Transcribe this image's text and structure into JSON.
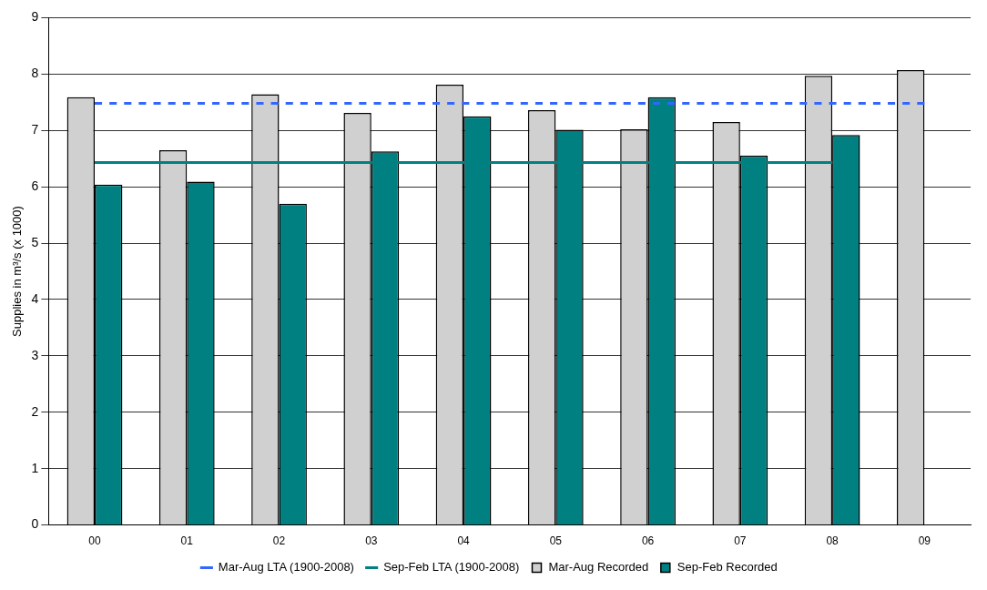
{
  "chart_data": {
    "type": "bar",
    "ylabel": "Supplies in m³/s (x 1000)",
    "categories": [
      "00",
      "01",
      "02",
      "03",
      "04",
      "05",
      "06",
      "07",
      "08",
      "09"
    ],
    "series": [
      {
        "name": "Mar-Aug Recorded",
        "color": "#d0d0d0",
        "values": [
          7.59,
          6.65,
          7.64,
          7.31,
          7.81,
          7.36,
          7.02,
          7.15,
          7.97,
          8.07
        ]
      },
      {
        "name": "Sep-Feb Recorded",
        "color": "#008080",
        "values": [
          6.04,
          6.09,
          5.7,
          6.63,
          7.25,
          7.01,
          7.59,
          6.55,
          6.92,
          null
        ]
      },
      {
        "name": "Mar-Aug LTA (1900-2008)",
        "type": "line",
        "line_style": "dashed",
        "color": "#3366ff",
        "values": [
          7.48,
          7.48,
          7.48,
          7.48,
          7.48,
          7.48,
          7.48,
          7.48,
          7.48,
          7.48
        ]
      },
      {
        "name": "Sep-Feb LTA (1900-2008)",
        "type": "line",
        "line_style": "solid",
        "color": "#008080",
        "values": [
          6.43,
          6.43,
          6.43,
          6.43,
          6.43,
          6.43,
          6.43,
          6.43,
          6.43,
          null
        ]
      }
    ],
    "ylim": [
      0,
      9
    ],
    "yticks": [
      0,
      1,
      2,
      3,
      4,
      5,
      6,
      7,
      8,
      9
    ],
    "grid": "y",
    "legend": "bottom",
    "marker": "none"
  }
}
